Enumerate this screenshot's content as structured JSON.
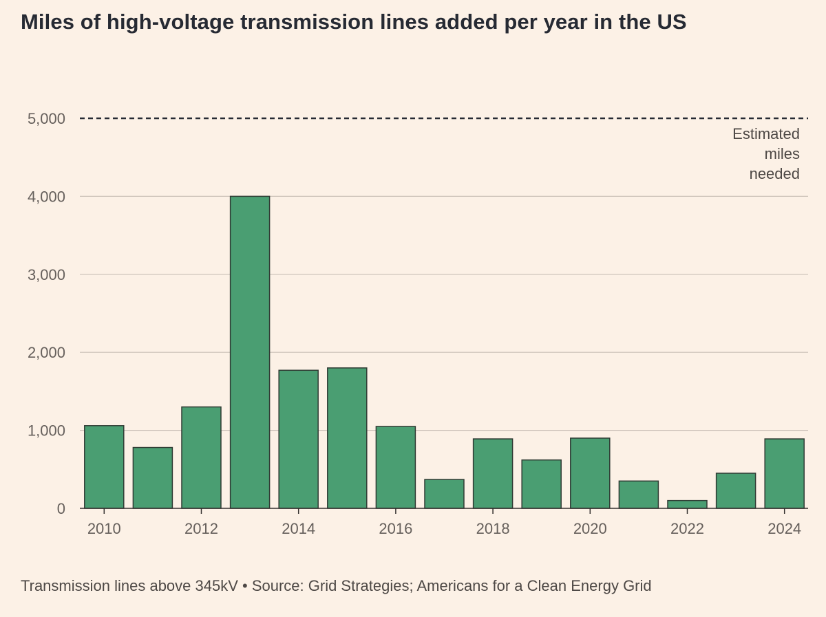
{
  "title": "Miles of high-voltage transmission lines added per year in the US",
  "footer": "Transmission lines above 345kV • Source: Grid Strategies; Americans for a Clean Energy Grid",
  "colors": {
    "bar": "#4a9e72",
    "bar_stroke": "#2f3a33",
    "background": "#fcf1e6",
    "grid": "#c9bfb6"
  },
  "chart_data": {
    "type": "bar",
    "categories": [
      "2010",
      "2011",
      "2012",
      "2013",
      "2014",
      "2015",
      "2016",
      "2017",
      "2018",
      "2019",
      "2020",
      "2021",
      "2022",
      "2023",
      "2024"
    ],
    "values": [
      1060,
      780,
      1300,
      4000,
      1770,
      1800,
      1050,
      370,
      890,
      620,
      900,
      350,
      100,
      450,
      890
    ],
    "x_tick_labels": [
      "2010",
      "2012",
      "2014",
      "2016",
      "2018",
      "2020",
      "2022",
      "2024"
    ],
    "y_ticks": [
      0,
      1000,
      2000,
      3000,
      4000,
      5000
    ],
    "y_tick_labels": [
      "0",
      "1,000",
      "2,000",
      "3,000",
      "4,000",
      "5,000"
    ],
    "ylim": [
      0,
      5000
    ],
    "grid": true,
    "reference_line": {
      "value": 5000,
      "style": "dashed",
      "label_lines": [
        "Estimated",
        "miles",
        "needed"
      ]
    }
  }
}
